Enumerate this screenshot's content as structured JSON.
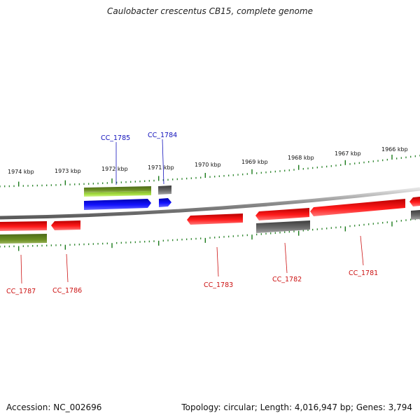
{
  "title": "Caulobacter crescentus CB15, complete genome",
  "footer": {
    "accession": "Accession: NC_002696",
    "summary": "Topology: circular; Length: 4,016,947 bp; Genes: 3,794"
  },
  "colors": {
    "forward_label": "#1111bb",
    "reverse_label": "#cc1111",
    "tick": "#1a7a1a",
    "red_feature": "#ee1111",
    "blue_feature": "#1111ee",
    "grey_feature": "#666666",
    "olive_feature": "#6b8e23",
    "lime_feature": "#9acd32"
  },
  "ruler_labels": [
    "1974 kbp",
    "1973 kbp",
    "1972 kbp",
    "1971 kbp",
    "1970 kbp",
    "1969 kbp",
    "1968 kbp",
    "1967 kbp",
    "1966 kbp"
  ],
  "genes": [
    {
      "name": "CC_1785",
      "strand": "forward"
    },
    {
      "name": "CC_1784",
      "strand": "forward"
    },
    {
      "name": "CC_1787",
      "strand": "reverse"
    },
    {
      "name": "CC_1786",
      "strand": "reverse"
    },
    {
      "name": "CC_1783",
      "strand": "reverse"
    },
    {
      "name": "CC_1782",
      "strand": "reverse"
    },
    {
      "name": "CC_1781",
      "strand": "reverse"
    }
  ]
}
